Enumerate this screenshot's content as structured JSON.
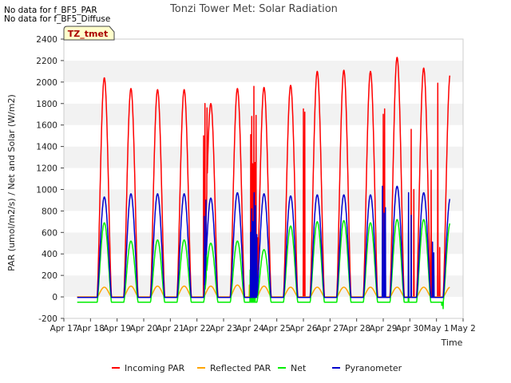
{
  "chart_data": {
    "type": "line",
    "title": "Tonzi Tower Met: Solar Radiation",
    "xlabel": "Time",
    "ylabel": "PAR (umol/m2/s) / Net and Solar (W/m2)",
    "no_data_notes": [
      "No data for f_BF5_PAR",
      "No data for f_BF5_Diffuse"
    ],
    "tag_label": "TZ_tmet",
    "xlim": [
      0,
      15
    ],
    "ylim": [
      -200,
      2400
    ],
    "x_ticks": [
      0,
      1,
      2,
      3,
      4,
      5,
      6,
      7,
      8,
      9,
      10,
      11,
      12,
      13,
      14,
      15
    ],
    "x_tick_labels": [
      "Apr 17",
      "Apr 18",
      "Apr 19",
      "Apr 20",
      "Apr 21",
      "Apr 22",
      "Apr 23",
      "Apr 24",
      "Apr 25",
      "Apr 26",
      "Apr 27",
      "Apr 28",
      "Apr 29",
      "Apr 30",
      "May 1",
      "May 2"
    ],
    "y_ticks": [
      -200,
      0,
      200,
      400,
      600,
      800,
      1000,
      1200,
      1400,
      1600,
      1800,
      2000,
      2200,
      2400
    ],
    "y_tick_labels": [
      "-200",
      "0",
      "200",
      "400",
      "600",
      "800",
      "1000",
      "1200",
      "1400",
      "1600",
      "1800",
      "2000",
      "2200",
      "2400"
    ],
    "grid": "horizontal bands",
    "legend_position": "bottom",
    "day_index_unit": "days since Apr 17",
    "series": [
      {
        "name": "Incoming PAR",
        "color": "#ff0000",
        "night_value": 0,
        "daily_peaks": [
          2040,
          1940,
          1930,
          1930,
          1800,
          1940,
          1950,
          1970,
          2100,
          2110,
          2100,
          2230,
          2130,
          2080
        ],
        "spikes": [
          [
            5.25,
            1500
          ],
          [
            5.3,
            1800
          ],
          [
            5.38,
            1760
          ],
          [
            7.02,
            1510
          ],
          [
            7.06,
            1680
          ],
          [
            7.1,
            1240
          ],
          [
            7.14,
            1960
          ],
          [
            7.18,
            1250
          ],
          [
            7.22,
            1690
          ],
          [
            7.28,
            550
          ],
          [
            9.0,
            1750
          ],
          [
            9.05,
            1720
          ],
          [
            12.0,
            1700
          ],
          [
            12.05,
            1750
          ],
          [
            13.05,
            1560
          ],
          [
            13.15,
            1000
          ],
          [
            13.8,
            1180
          ],
          [
            14.05,
            1990
          ],
          [
            14.12,
            460
          ],
          [
            14.2,
            0
          ]
        ]
      },
      {
        "name": "Reflected PAR",
        "color": "#ffa500",
        "night_value": 0,
        "daily_peaks": [
          90,
          100,
          100,
          100,
          100,
          110,
          100,
          90,
          90,
          90,
          90,
          90,
          90,
          90
        ],
        "spikes": [
          [
            6.97,
            110
          ],
          [
            7.05,
            100
          ]
        ]
      },
      {
        "name": "Net",
        "color": "#00ee00",
        "night_value": -50,
        "daily_peaks": [
          690,
          520,
          530,
          530,
          500,
          520,
          440,
          660,
          700,
          710,
          690,
          720,
          720,
          690
        ],
        "spikes": [
          [
            5.3,
            380
          ],
          [
            5.36,
            450
          ],
          [
            7.0,
            250
          ],
          [
            7.06,
            300
          ],
          [
            7.12,
            410
          ],
          [
            7.18,
            280
          ],
          [
            12.95,
            690
          ],
          [
            14.2,
            -80
          ],
          [
            14.25,
            -110
          ]
        ]
      },
      {
        "name": "Pyranometer",
        "color": "#0000cc",
        "night_value": -5,
        "daily_peaks": [
          930,
          960,
          960,
          960,
          920,
          970,
          960,
          940,
          950,
          950,
          950,
          1030,
          970,
          920
        ],
        "spikes": [
          [
            5.28,
            750
          ],
          [
            5.34,
            900
          ],
          [
            7.02,
            600
          ],
          [
            7.06,
            820
          ],
          [
            7.1,
            700
          ],
          [
            7.15,
            970
          ],
          [
            7.2,
            850
          ],
          [
            7.25,
            580
          ],
          [
            11.97,
            1030
          ],
          [
            12.03,
            780
          ],
          [
            12.08,
            830
          ],
          [
            12.95,
            970
          ],
          [
            13.05,
            760
          ],
          [
            13.85,
            510
          ],
          [
            13.9,
            410
          ]
        ]
      }
    ]
  }
}
